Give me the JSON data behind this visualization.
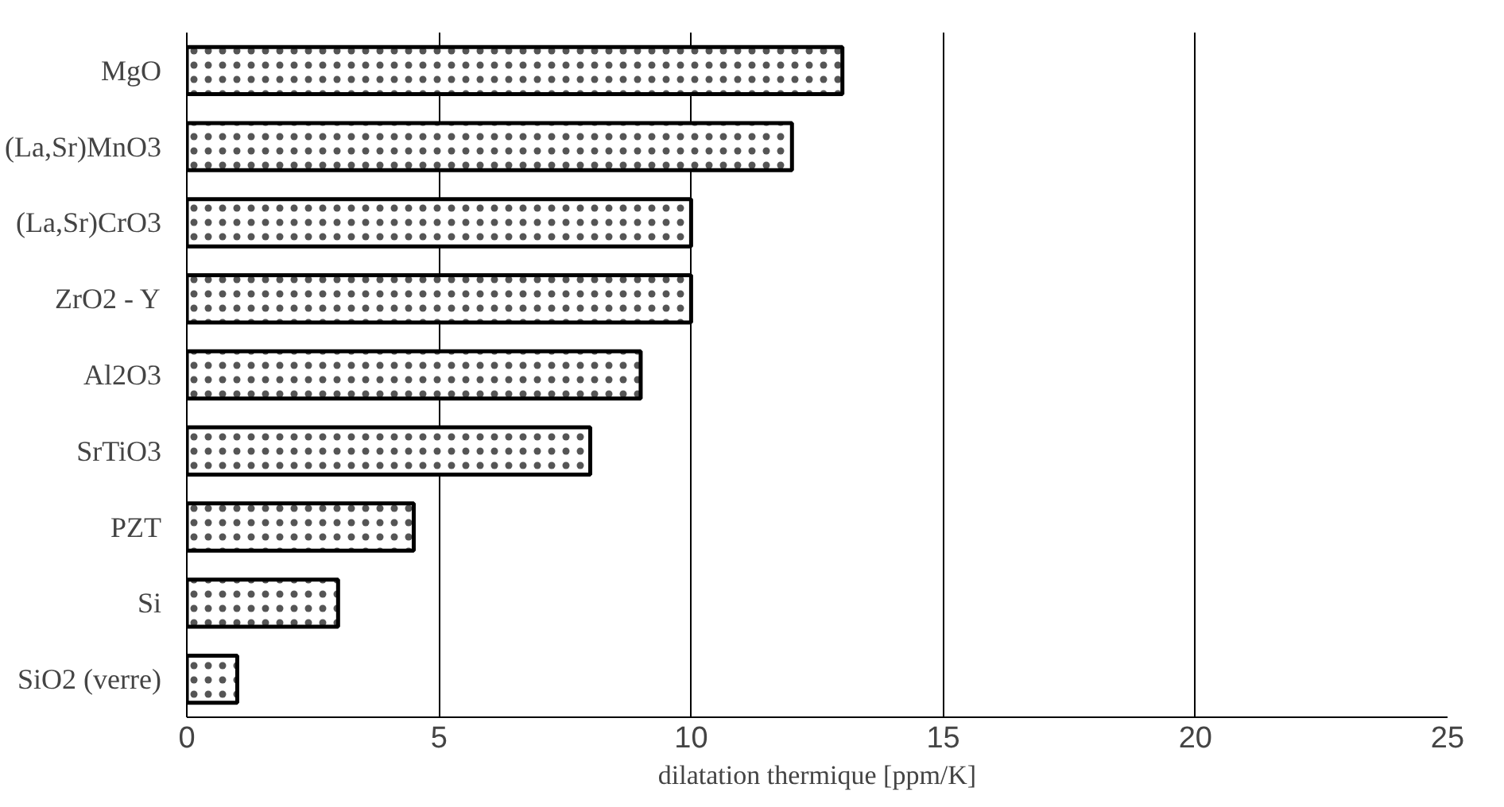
{
  "chart_data": {
    "type": "bar",
    "orientation": "horizontal",
    "xlabel": "dilatation thermique [ppm/K]",
    "categories": [
      "MgO",
      "(La,Sr)MnO3",
      "(La,Sr)CrO3",
      "ZrO2 - Y",
      "Al2O3",
      "SrTiO3",
      "PZT",
      "Si",
      "SiO2 (verre)"
    ],
    "values": [
      13,
      12,
      10,
      10,
      9,
      8,
      4.5,
      3,
      1
    ],
    "color": "#ffffff",
    "xlim": [
      0,
      25
    ],
    "xticks": [
      0,
      5,
      10,
      15,
      20,
      25
    ],
    "grid": "x"
  }
}
